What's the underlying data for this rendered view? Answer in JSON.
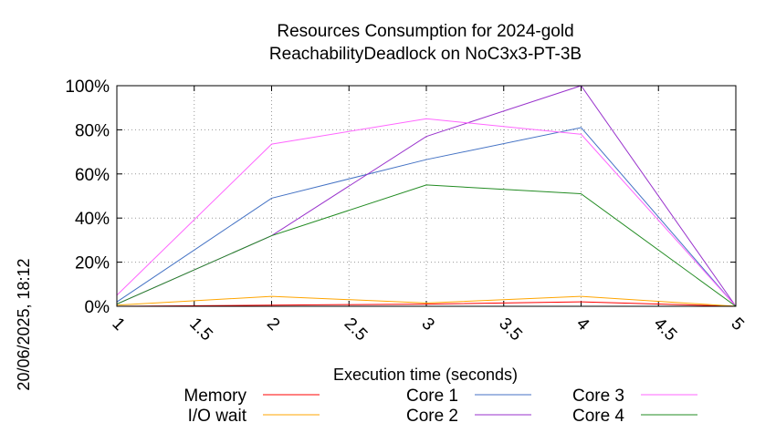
{
  "chart_data": {
    "type": "line",
    "title": "Resources Consumption for 2024-gold",
    "subtitle": "ReachabilityDeadlock on NoC3x3-PT-3B",
    "xlabel": "Execution time (seconds)",
    "ylabel": "",
    "side_label": "20/06/2025, 18:12",
    "xlim": [
      1,
      5
    ],
    "ylim": [
      0,
      100
    ],
    "x_ticks": [
      "1",
      "1.5",
      "2",
      "2.5",
      "3",
      "3.5",
      "4",
      "4.5",
      "5"
    ],
    "y_ticks": [
      "0%",
      "20%",
      "40%",
      "60%",
      "80%",
      "100%"
    ],
    "grid": true,
    "legend_position": "bottom",
    "x": [
      1,
      2,
      3,
      4,
      5
    ],
    "series": [
      {
        "name": "Memory",
        "color": "#ff0000",
        "values": [
          0,
          0.5,
          1,
          2,
          0
        ]
      },
      {
        "name": "I/O wait",
        "color": "#ffa500",
        "values": [
          0.5,
          4.5,
          1.5,
          4.5,
          0
        ]
      },
      {
        "name": "Core 1",
        "color": "#4472c4",
        "values": [
          2,
          49,
          66.5,
          81,
          0
        ]
      },
      {
        "name": "Core 2",
        "color": "#9932cc",
        "values": [
          1,
          32,
          77,
          100,
          0
        ]
      },
      {
        "name": "Core 3",
        "color": "#ff66ff",
        "values": [
          5,
          73.5,
          85,
          78,
          0
        ]
      },
      {
        "name": "Core 4",
        "color": "#228b22",
        "values": [
          1,
          32,
          55,
          51,
          0
        ]
      }
    ]
  }
}
